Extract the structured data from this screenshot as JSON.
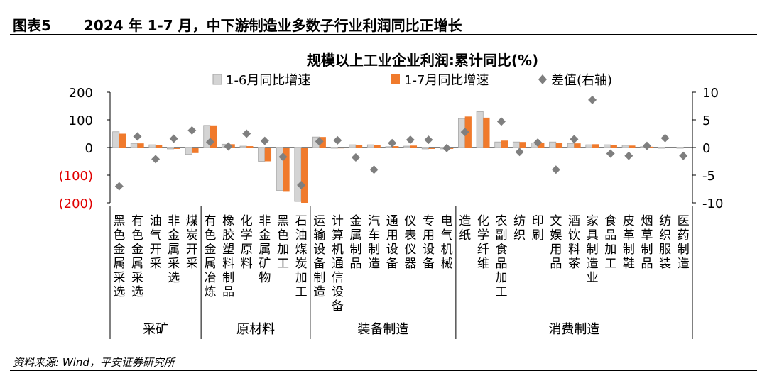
{
  "figure": {
    "label": "图表5",
    "caption": "2024 年 1-7 月，中下游制造业多数子行业利润同比正增长",
    "source": "资料来源: Wind，平安证券研究所"
  },
  "colors": {
    "series1": "#d4d4d4",
    "series1_edge": "#a6a6a6",
    "series2": "#f07a2c",
    "diff": "#7f7f7f",
    "negative_tick": "#e00000"
  },
  "chart_data": {
    "type": "bar",
    "title": "规模以上工业企业利润:累计同比(%)",
    "legend": [
      "1-6月同比增速",
      "1-7月同比增速",
      "差值(右轴)"
    ],
    "categories": [
      "黑色金属采选",
      "有色金属采选",
      "油气开采",
      "非金属采选",
      "煤炭开采",
      "有色金属冶炼",
      "橡胶塑料制品",
      "化学原料",
      "非金属矿物",
      "黑色加工",
      "石油煤炭加工",
      "运输设备制造",
      "计算机通信设备",
      "金属制品",
      "汽车制造",
      "通用设备",
      "仪表仪器",
      "专用设备",
      "电气机械",
      "造纸",
      "化学纤维",
      "农副食品加工",
      "纺织",
      "印刷",
      "文娱用品",
      "酒饮料茶",
      "家具制造业",
      "食品加工",
      "皮革制鞋",
      "烟草制品",
      "纺织服装",
      "医药制造"
    ],
    "groups": [
      {
        "name": "采矿",
        "count": 5
      },
      {
        "name": "原材料",
        "count": 6
      },
      {
        "name": "装备制造",
        "count": 8
      },
      {
        "name": "消费制造",
        "count": 13
      }
    ],
    "series": [
      {
        "name": "1-6月同比增速",
        "axis": "left",
        "values": [
          57,
          15,
          10,
          -5,
          -25,
          80,
          12,
          5,
          -50,
          -155,
          -195,
          38,
          -2,
          10,
          10,
          3,
          5,
          -5,
          -5,
          105,
          130,
          20,
          20,
          17,
          20,
          15,
          10,
          10,
          8,
          3,
          -2,
          -2
        ]
      },
      {
        "name": "1-7月同比增速",
        "axis": "left",
        "values": [
          50,
          15,
          8,
          -5,
          -20,
          80,
          12,
          5,
          -50,
          -160,
          -200,
          38,
          -3,
          8,
          8,
          5,
          7,
          -5,
          -5,
          112,
          108,
          25,
          20,
          18,
          17,
          15,
          12,
          10,
          7,
          3,
          -2,
          -2
        ]
      },
      {
        "name": "差值(右轴)",
        "axis": "right",
        "type": "scatter",
        "values": [
          -7,
          2,
          -2.1,
          1.6,
          3.1,
          1,
          0.2,
          2.5,
          1.2,
          -1.7,
          -6.8,
          1.1,
          1.3,
          -1.8,
          -4,
          0.8,
          1.4,
          1.4,
          -0.1,
          2.8,
          null,
          4.7,
          -0.8,
          0.9,
          -4,
          1.5,
          8.6,
          -1.1,
          -1.5,
          0.3,
          1.7,
          -1.5
        ]
      }
    ],
    "y_left": {
      "min": -200,
      "max": 200,
      "ticks": [
        200,
        100,
        0,
        -100,
        -200
      ],
      "tick_labels": [
        "200",
        "100",
        "0",
        "(100)",
        "(200)"
      ]
    },
    "y_right": {
      "min": -10,
      "max": 10,
      "ticks": [
        10,
        5,
        0,
        -5,
        -10
      ],
      "tick_labels": [
        "10",
        "5",
        "0",
        "-5",
        "-10"
      ]
    }
  }
}
